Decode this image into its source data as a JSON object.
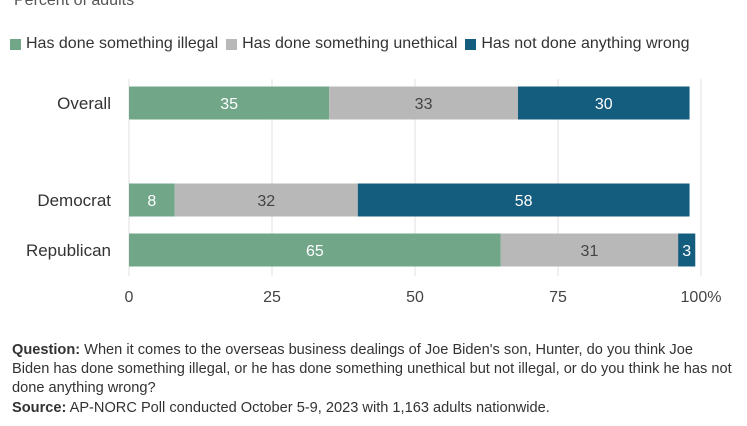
{
  "subtitle": "Percent of adults",
  "legend": [
    {
      "label": "Has done something illegal",
      "color": "#72a689"
    },
    {
      "label": "Has done something unethical",
      "color": "#b8b8b8"
    },
    {
      "label": "Has not done anything wrong",
      "color": "#155d7e"
    }
  ],
  "chart_data": {
    "type": "bar",
    "orientation": "horizontal",
    "stacked": true,
    "categories": [
      "Overall",
      "Democrat",
      "Republican"
    ],
    "series": [
      {
        "name": "Has done something illegal",
        "values": [
          35,
          8,
          65
        ],
        "color": "#72a689"
      },
      {
        "name": "Has done something unethical",
        "values": [
          33,
          32,
          31
        ],
        "color": "#b8b8b8"
      },
      {
        "name": "Has not done anything wrong",
        "values": [
          30,
          58,
          3
        ],
        "color": "#155d7e"
      }
    ],
    "xlim": [
      0,
      100
    ],
    "xticks": [
      "0",
      "25",
      "50",
      "75",
      "100%"
    ],
    "grid": true,
    "legend_position": "top"
  },
  "footer": {
    "question_label": "Question:",
    "question_text": " When it comes to the overseas business dealings of Joe Biden's son, Hunter, do you think Joe Biden has done something illegal, or he has done something unethical but not illegal, or do you think he has not done anything wrong?",
    "source_label": "Source:",
    "source_text": " AP-NORC Poll conducted October 5-9, 2023 with 1,163 adults nationwide."
  }
}
